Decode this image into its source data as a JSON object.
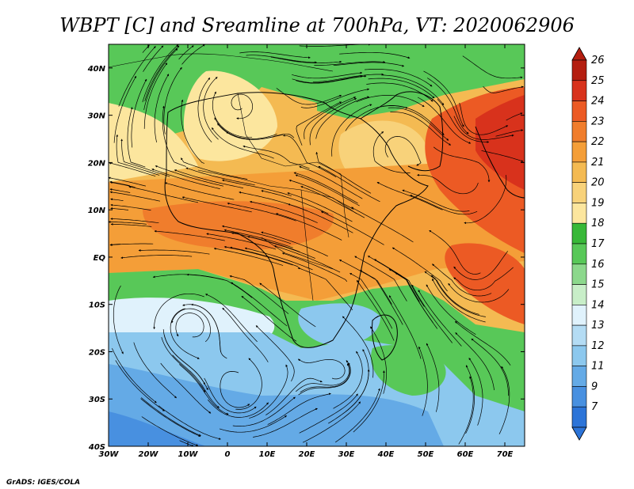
{
  "title": "WBPT [C] and Sreamline at 700hPa, VT: 2020062906",
  "credit": "GrADS: IGES/COLA",
  "map": {
    "lon_range": [
      -30,
      75
    ],
    "lat_range": [
      -40,
      45
    ],
    "lon_ticks": [
      {
        "value": -30,
        "label": "30W"
      },
      {
        "value": -20,
        "label": "20W"
      },
      {
        "value": -10,
        "label": "10W"
      },
      {
        "value": 0,
        "label": "0"
      },
      {
        "value": 10,
        "label": "10E"
      },
      {
        "value": 20,
        "label": "20E"
      },
      {
        "value": 30,
        "label": "30E"
      },
      {
        "value": 40,
        "label": "40E"
      },
      {
        "value": 50,
        "label": "50E"
      },
      {
        "value": 60,
        "label": "60E"
      },
      {
        "value": 70,
        "label": "70E"
      }
    ],
    "lat_ticks": [
      {
        "value": 40,
        "label": "40N"
      },
      {
        "value": 30,
        "label": "30N"
      },
      {
        "value": 20,
        "label": "20N"
      },
      {
        "value": 10,
        "label": "10N"
      },
      {
        "value": 0,
        "label": "EQ"
      },
      {
        "value": -10,
        "label": "10S"
      },
      {
        "value": -20,
        "label": "20S"
      },
      {
        "value": -30,
        "label": "30S"
      },
      {
        "value": -40,
        "label": "40S"
      }
    ]
  },
  "colorbar": {
    "labels": [
      "26",
      "25",
      "24",
      "23",
      "22",
      "21",
      "20",
      "19",
      "18",
      "17",
      "16",
      "15",
      "14",
      "13",
      "12",
      "11",
      "9",
      "7"
    ],
    "colors": [
      "#b41e10",
      "#d8321c",
      "#ec5a24",
      "#f07d2c",
      "#f49e38",
      "#f4ba52",
      "#f8d27a",
      "#fce69e",
      "#38b838",
      "#58c858",
      "#8cd88c",
      "#c8eec8",
      "#e0f2fc",
      "#b4dcf4",
      "#8cc8ee",
      "#64aae6",
      "#4890e0",
      "#2c74d8"
    ]
  }
}
